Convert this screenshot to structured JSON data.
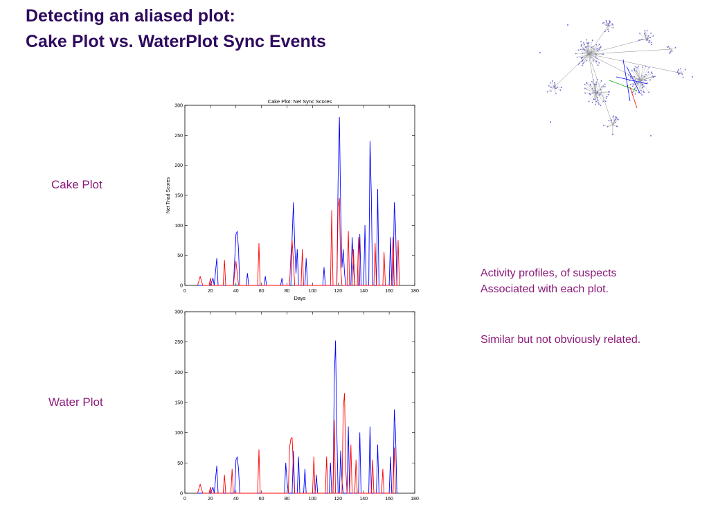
{
  "slide": {
    "title_line1": "Detecting an aliased plot:",
    "title_line2": "Cake Plot vs. WaterPlot Sync Events",
    "cake_label": "Cake Plot",
    "water_label": "Water Plot",
    "note_line1": "Activity profiles, of suspects",
    "note_line2": "Associated with each plot.",
    "note_line3": "Similar but not obviously related."
  },
  "colors": {
    "title": "#2e0a5e",
    "labels": "#8b1a7a",
    "series_a": "#0000ff",
    "series_b": "#ff0000"
  },
  "network_image": "network-graph-icon",
  "chart_data": [
    {
      "type": "line",
      "title": "Cake Plot: Net Sync Scores",
      "xlabel": "Days",
      "ylabel": "Net Triad Scores",
      "xlim": [
        0,
        180
      ],
      "ylim": [
        0,
        300
      ],
      "xticks": [
        0,
        20,
        40,
        60,
        80,
        100,
        120,
        140,
        160,
        180
      ],
      "yticks": [
        0,
        50,
        100,
        150,
        200,
        250,
        300
      ],
      "grid": false,
      "series": [
        {
          "color": "#0000ff",
          "points": [
            [
              10,
              0
            ],
            [
              20,
              0
            ],
            [
              22,
              12
            ],
            [
              23,
              0
            ],
            [
              25,
              45
            ],
            [
              26,
              0
            ],
            [
              38,
              0
            ],
            [
              40,
              85
            ],
            [
              41,
              90
            ],
            [
              42,
              60
            ],
            [
              43,
              0
            ],
            [
              48,
              0
            ],
            [
              49,
              20
            ],
            [
              50,
              0
            ],
            [
              62,
              0
            ],
            [
              63,
              15
            ],
            [
              64,
              0
            ],
            [
              75,
              0
            ],
            [
              76,
              12
            ],
            [
              77,
              0
            ],
            [
              83,
              0
            ],
            [
              84,
              80
            ],
            [
              85,
              138
            ],
            [
              86,
              70
            ],
            [
              87,
              20
            ],
            [
              88,
              60
            ],
            [
              89,
              0
            ],
            [
              94,
              0
            ],
            [
              95,
              45
            ],
            [
              96,
              0
            ],
            [
              108,
              0
            ],
            [
              109,
              30
            ],
            [
              110,
              0
            ],
            [
              119,
              0
            ],
            [
              120,
              175
            ],
            [
              121,
              280
            ],
            [
              122,
              130
            ],
            [
              123,
              30
            ],
            [
              124,
              60
            ],
            [
              125,
              20
            ],
            [
              126,
              0
            ],
            [
              130,
              0
            ],
            [
              131,
              80
            ],
            [
              132,
              30
            ],
            [
              133,
              0
            ],
            [
              136,
              0
            ],
            [
              137,
              85
            ],
            [
              138,
              0
            ],
            [
              140,
              0
            ],
            [
              141,
              100
            ],
            [
              142,
              0
            ],
            [
              144,
              0
            ],
            [
              145,
              240
            ],
            [
              146,
              150
            ],
            [
              147,
              0
            ],
            [
              150,
              0
            ],
            [
              151,
              160
            ],
            [
              152,
              0
            ],
            [
              160,
              0
            ],
            [
              161,
              80
            ],
            [
              162,
              0
            ],
            [
              163,
              0
            ],
            [
              164,
              138
            ],
            [
              165,
              100
            ],
            [
              166,
              0
            ]
          ]
        },
        {
          "color": "#ff0000",
          "points": [
            [
              10,
              0
            ],
            [
              12,
              15
            ],
            [
              14,
              0
            ],
            [
              19,
              0
            ],
            [
              20,
              12
            ],
            [
              21,
              0
            ],
            [
              30,
              0
            ],
            [
              31,
              42
            ],
            [
              32,
              0
            ],
            [
              38,
              0
            ],
            [
              40,
              40
            ],
            [
              42,
              0
            ],
            [
              57,
              0
            ],
            [
              58,
              70
            ],
            [
              59,
              0
            ],
            [
              82,
              0
            ],
            [
              83,
              50
            ],
            [
              84,
              75
            ],
            [
              85,
              40
            ],
            [
              86,
              0
            ],
            [
              91,
              0
            ],
            [
              92,
              60
            ],
            [
              93,
              0
            ],
            [
              114,
              0
            ],
            [
              115,
              125
            ],
            [
              116,
              0
            ],
            [
              119,
              0
            ],
            [
              120,
              130
            ],
            [
              121,
              145
            ],
            [
              122,
              30
            ],
            [
              123,
              0
            ],
            [
              127,
              0
            ],
            [
              128,
              90
            ],
            [
              129,
              0
            ],
            [
              131,
              0
            ],
            [
              132,
              60
            ],
            [
              133,
              0
            ],
            [
              135,
              0
            ],
            [
              136,
              80
            ],
            [
              137,
              0
            ],
            [
              148,
              0
            ],
            [
              149,
              70
            ],
            [
              150,
              0
            ],
            [
              155,
              0
            ],
            [
              156,
              55
            ],
            [
              157,
              0
            ],
            [
              162,
              0
            ],
            [
              163,
              80
            ],
            [
              164,
              0
            ],
            [
              166,
              0
            ],
            [
              167,
              75
            ],
            [
              168,
              0
            ]
          ]
        }
      ]
    },
    {
      "type": "line",
      "title": "",
      "xlabel": "",
      "ylabel": "",
      "xlim": [
        0,
        180
      ],
      "ylim": [
        0,
        300
      ],
      "xticks": [
        0,
        20,
        40,
        60,
        80,
        100,
        120,
        140,
        160,
        180
      ],
      "yticks": [
        0,
        50,
        100,
        150,
        200,
        250,
        300
      ],
      "grid": false,
      "series": [
        {
          "color": "#0000ff",
          "points": [
            [
              10,
              0
            ],
            [
              20,
              0
            ],
            [
              22,
              10
            ],
            [
              23,
              0
            ],
            [
              25,
              45
            ],
            [
              26,
              0
            ],
            [
              39,
              0
            ],
            [
              40,
              55
            ],
            [
              41,
              60
            ],
            [
              42,
              40
            ],
            [
              43,
              0
            ],
            [
              78,
              0
            ],
            [
              79,
              50
            ],
            [
              80,
              20
            ],
            [
              81,
              0
            ],
            [
              84,
              0
            ],
            [
              85,
              70
            ],
            [
              86,
              0
            ],
            [
              88,
              0
            ],
            [
              89,
              60
            ],
            [
              90,
              0
            ],
            [
              93,
              0
            ],
            [
              94,
              40
            ],
            [
              95,
              0
            ],
            [
              102,
              0
            ],
            [
              103,
              30
            ],
            [
              104,
              0
            ],
            [
              113,
              0
            ],
            [
              114,
              50
            ],
            [
              115,
              0
            ],
            [
              116,
              0
            ],
            [
              117,
              190
            ],
            [
              118,
              252
            ],
            [
              119,
              100
            ],
            [
              120,
              0
            ],
            [
              121,
              0
            ],
            [
              122,
              70
            ],
            [
              123,
              20
            ],
            [
              124,
              0
            ],
            [
              127,
              0
            ],
            [
              128,
              110
            ],
            [
              129,
              0
            ],
            [
              136,
              0
            ],
            [
              137,
              100
            ],
            [
              138,
              0
            ],
            [
              144,
              0
            ],
            [
              145,
              110
            ],
            [
              146,
              0
            ],
            [
              150,
              0
            ],
            [
              151,
              80
            ],
            [
              152,
              0
            ],
            [
              160,
              0
            ],
            [
              161,
              60
            ],
            [
              162,
              0
            ],
            [
              163,
              0
            ],
            [
              164,
              138
            ],
            [
              165,
              100
            ],
            [
              166,
              0
            ]
          ]
        },
        {
          "color": "#ff0000",
          "points": [
            [
              10,
              0
            ],
            [
              12,
              15
            ],
            [
              14,
              0
            ],
            [
              19,
              0
            ],
            [
              20,
              10
            ],
            [
              21,
              0
            ],
            [
              30,
              0
            ],
            [
              31,
              30
            ],
            [
              32,
              0
            ],
            [
              36,
              0
            ],
            [
              37,
              40
            ],
            [
              38,
              0
            ],
            [
              57,
              0
            ],
            [
              58,
              72
            ],
            [
              59,
              0
            ],
            [
              81,
              0
            ],
            [
              82,
              75
            ],
            [
              83,
              90
            ],
            [
              84,
              92
            ],
            [
              85,
              40
            ],
            [
              86,
              0
            ],
            [
              100,
              0
            ],
            [
              101,
              60
            ],
            [
              102,
              0
            ],
            [
              110,
              0
            ],
            [
              111,
              60
            ],
            [
              112,
              0
            ],
            [
              116,
              0
            ],
            [
              117,
              120
            ],
            [
              118,
              0
            ],
            [
              123,
              0
            ],
            [
              124,
              140
            ],
            [
              125,
              165
            ],
            [
              126,
              40
            ],
            [
              127,
              0
            ],
            [
              129,
              0
            ],
            [
              130,
              80
            ],
            [
              131,
              0
            ],
            [
              133,
              0
            ],
            [
              134,
              55
            ],
            [
              135,
              0
            ],
            [
              146,
              0
            ],
            [
              147,
              55
            ],
            [
              148,
              0
            ],
            [
              154,
              0
            ],
            [
              155,
              40
            ],
            [
              156,
              0
            ],
            [
              163,
              0
            ],
            [
              164,
              75
            ],
            [
              165,
              0
            ]
          ]
        }
      ]
    }
  ]
}
